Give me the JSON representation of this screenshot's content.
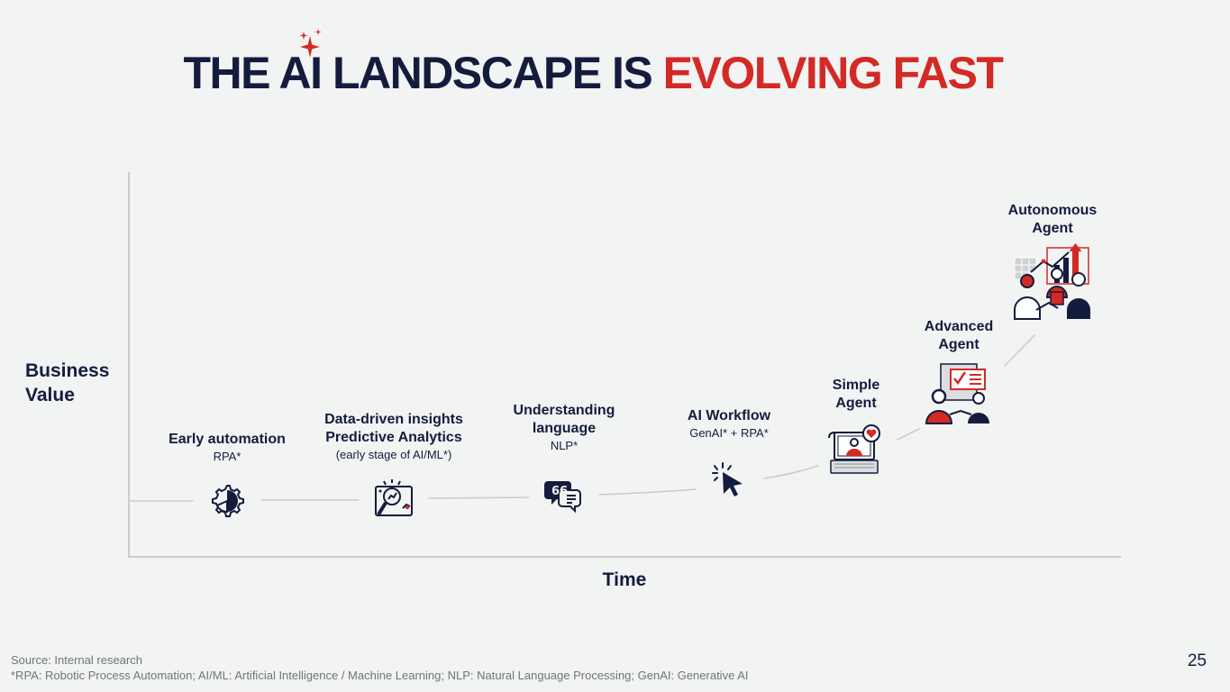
{
  "title": {
    "part1": "THE AI LANDSCAPE IS",
    "part2": "EVOLVING FAST"
  },
  "axes": {
    "y_label_line1": "Business",
    "y_label_line2": "Value",
    "x_label": "Time"
  },
  "stages": [
    {
      "title": "Early automation",
      "subtitle": "RPA*",
      "icon": "gear-chart-icon"
    },
    {
      "title_line1": "Data-driven insights",
      "title_line2": "Predictive Analytics",
      "subtitle": "(early stage of AI/ML*)",
      "icon": "magnifier-analytics-icon"
    },
    {
      "title_line1": "Understanding",
      "title_line2": "language",
      "subtitle": "NLP*",
      "icon": "speech-bubble-icon"
    },
    {
      "title": "AI Workflow",
      "subtitle": "GenAI* + RPA*",
      "icon": "cursor-click-icon"
    },
    {
      "title_line1": "Simple",
      "title_line2": "Agent",
      "icon": "laptop-agent-icon"
    },
    {
      "title_line1": "Advanced",
      "title_line2": "Agent",
      "icon": "people-checklist-icon"
    },
    {
      "title_line1": "Autonomous",
      "title_line2": "Agent",
      "icon": "team-growth-icon"
    }
  ],
  "footer": {
    "source": "Source: Internal research",
    "footnote": "*RPA: Robotic Process Automation; AI/ML: Artificial Intelligence / Machine Learning; NLP: Natural Language Processing; GenAI: Generative AI",
    "page_number": "25"
  },
  "colors": {
    "navy": "#141c3e",
    "red": "#d32a25",
    "connector": "#c9cbcd"
  }
}
